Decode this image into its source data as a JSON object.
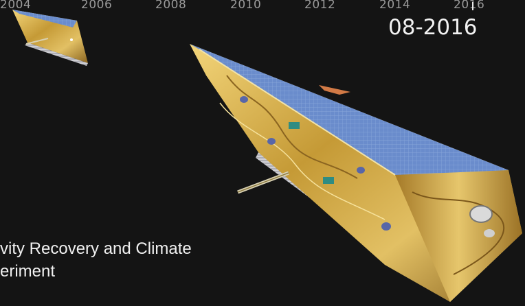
{
  "timeline": {
    "years": [
      "2004",
      "2006",
      "2008",
      "2010",
      "2012",
      "2014",
      "2016"
    ],
    "current_date": "08-2016"
  },
  "caption": {
    "line1": "vity Recovery and Climate",
    "line2": "eriment"
  },
  "colors": {
    "background": "#141414",
    "solar_panel": "#5b7fc4",
    "gold_foil": "#c9a244",
    "axis_text": "#9a9a9a"
  }
}
